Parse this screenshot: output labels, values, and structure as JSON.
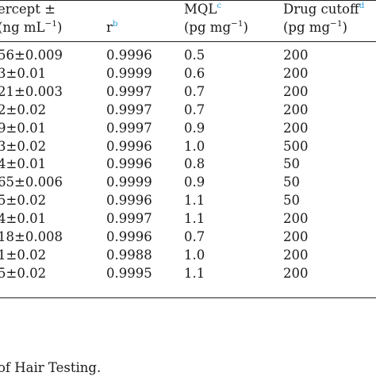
{
  "header": {
    "col1_line1": "ercept ±",
    "col1_line2": "(ng mL",
    "col1_sup": "−1",
    "col1_close": ")",
    "col2_label": "r",
    "col2_note": "b",
    "col3_label": "MQL",
    "col3_note": "c",
    "col3_unit": "(pg mg",
    "col3_unit_sup": "−1",
    "col3_unit_close": ")",
    "col4_label": "Drug cutoff",
    "col4_note": "d",
    "col4_unit": "(pg mg",
    "col4_unit_sup": "−1",
    "col4_unit_close": ")"
  },
  "rows": [
    {
      "intercept": "56±0.009",
      "r": "0.9996",
      "mql": "0.5",
      "cutoff": "200"
    },
    {
      "intercept": "3±0.01",
      "r": "0.9999",
      "mql": "0.6",
      "cutoff": "200"
    },
    {
      "intercept": "21±0.003",
      "r": "0.9997",
      "mql": "0.7",
      "cutoff": "200"
    },
    {
      "intercept": "2±0.02",
      "r": "0.9997",
      "mql": "0.7",
      "cutoff": "200"
    },
    {
      "intercept": "9±0.01",
      "r": "0.9997",
      "mql": "0.9",
      "cutoff": "200"
    },
    {
      "intercept": "3±0.02",
      "r": "0.9996",
      "mql": "1.0",
      "cutoff": "500"
    },
    {
      "intercept": "4±0.01",
      "r": "0.9996",
      "mql": "0.8",
      "cutoff": "50"
    },
    {
      "intercept": "65±0.006",
      "r": "0.9999",
      "mql": "0.9",
      "cutoff": "50"
    },
    {
      "intercept": "5±0.02",
      "r": "0.9996",
      "mql": "1.1",
      "cutoff": "50"
    },
    {
      "intercept": "4±0.01",
      "r": "0.9997",
      "mql": "1.1",
      "cutoff": "200"
    },
    {
      "intercept": "18±0.008",
      "r": "0.9996",
      "mql": "0.7",
      "cutoff": "200"
    },
    {
      "intercept": "1±0.02",
      "r": "0.9988",
      "mql": "1.0",
      "cutoff": "200"
    },
    {
      "intercept": "5±0.02",
      "r": "0.9995",
      "mql": "1.1",
      "cutoff": "200"
    }
  ],
  "footer_text": "of Hair Testing."
}
